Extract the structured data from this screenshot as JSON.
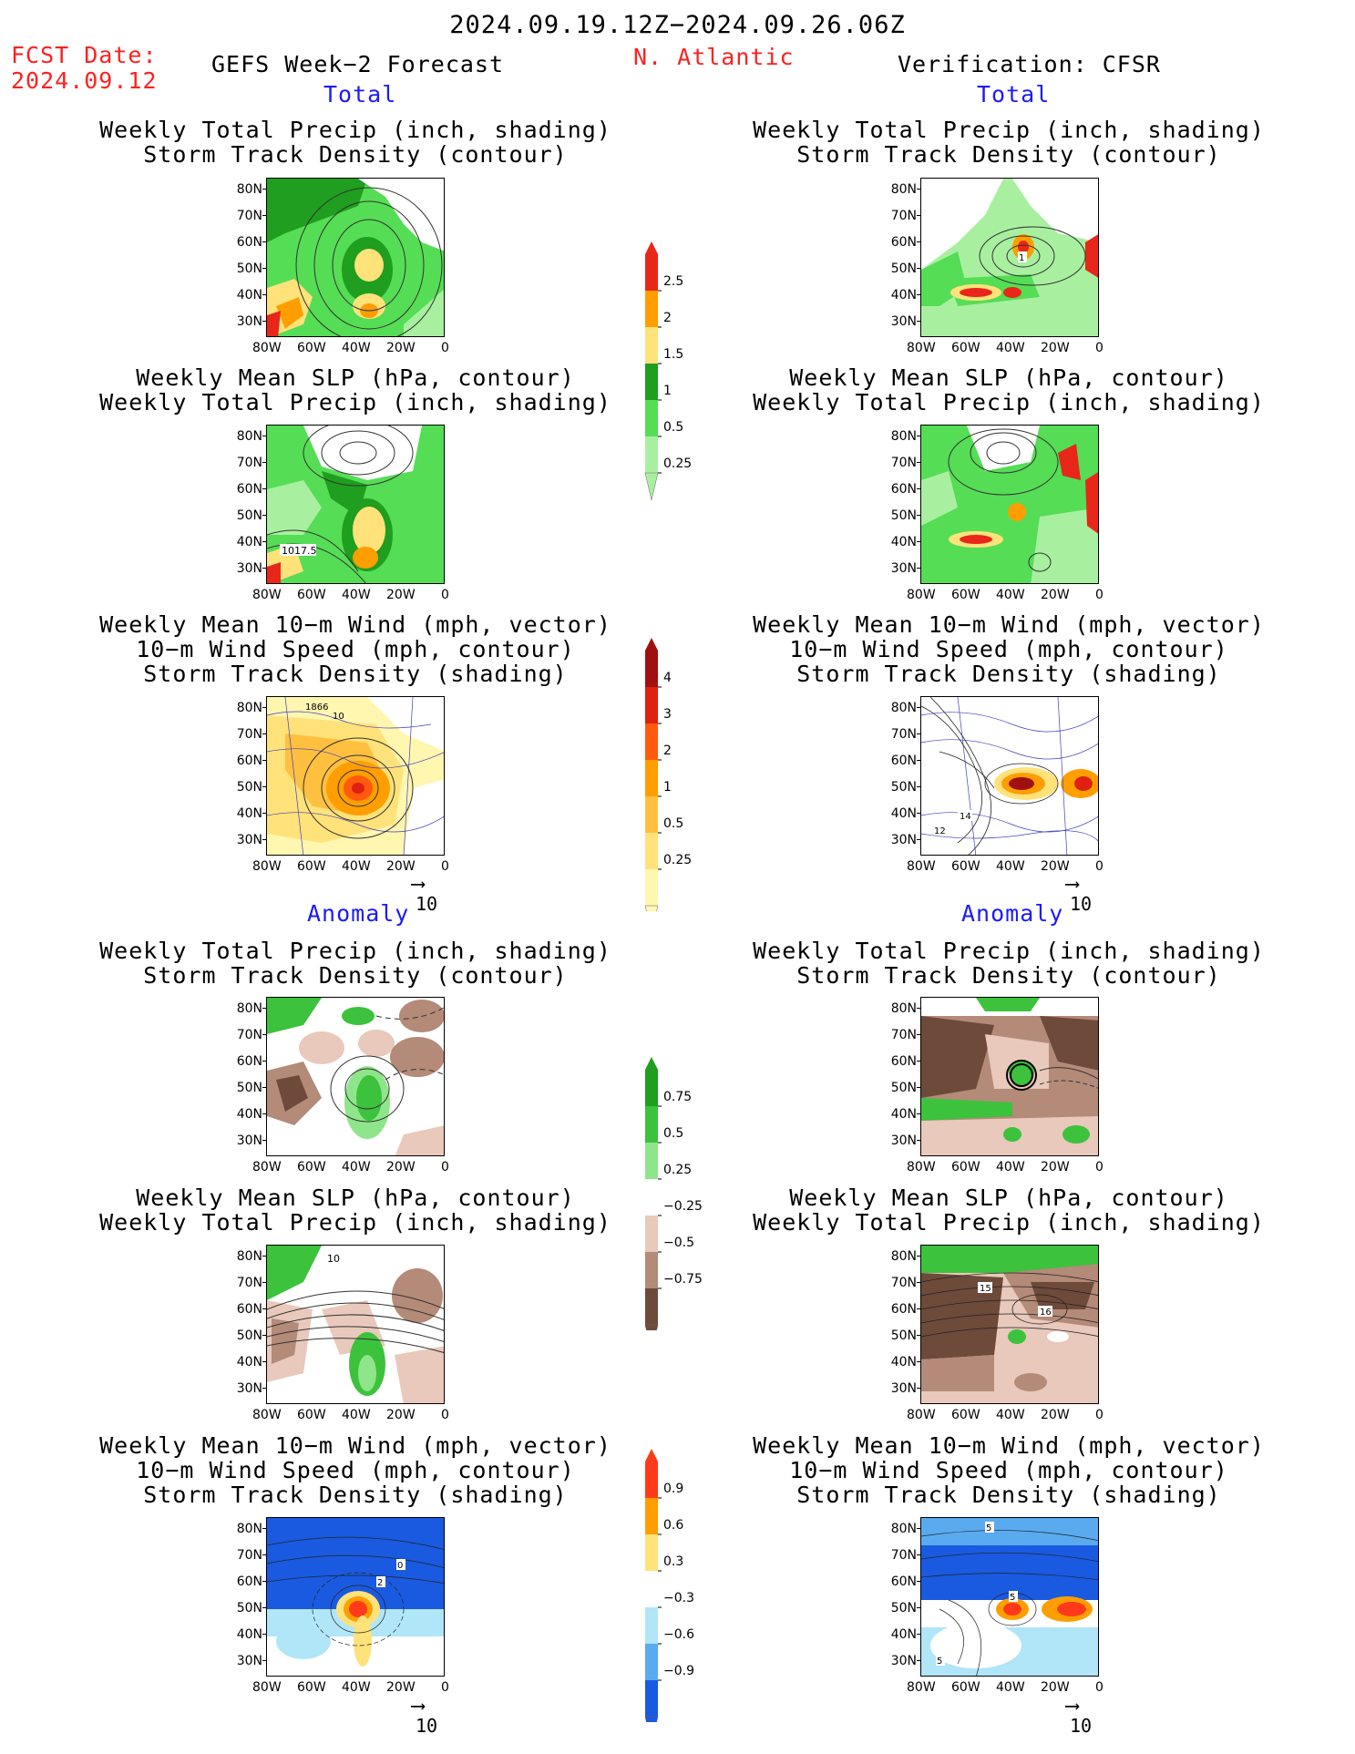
{
  "header": {
    "period": "2024.09.19.12Z−2024.09.26.06Z",
    "fcst_label": "FCST Date:",
    "fcst_date": "2024.09.12",
    "model": "GEFS Week−2 Forecast",
    "region": "N. Atlantic",
    "verification": "Verification: CFSR"
  },
  "sections": {
    "total": "Total",
    "anomaly": "Anomaly"
  },
  "titles": {
    "precip_track": [
      "Weekly Total Precip (inch, shading)",
      "Storm Track Density (contour)"
    ],
    "slp_precip": [
      "Weekly Mean SLP (hPa, contour)",
      "Weekly Total Precip (inch, shading)"
    ],
    "wind_track": [
      "Weekly Mean 10−m Wind (mph, vector)",
      "10−m Wind Speed (mph, contour)",
      "Storm Track Density (shading)"
    ]
  },
  "axes": {
    "lat_ticks": [
      "80N",
      "70N",
      "60N",
      "50N",
      "40N",
      "30N"
    ],
    "lon_ticks": [
      "80W",
      "60W",
      "40W",
      "20W",
      "0"
    ]
  },
  "vector_ref": "10",
  "colorbars": {
    "total_precip": {
      "labels": [
        "2.5",
        "2",
        "1.5",
        "1",
        "0.5",
        "0.25"
      ],
      "colors": [
        "#e8261a",
        "#ff9e00",
        "#ffe27a",
        "#1f9e1f",
        "#55dd55",
        "#a8f0a0"
      ]
    },
    "total_track": {
      "labels": [
        "4",
        "3",
        "2",
        "1",
        "0.5",
        "0.25"
      ],
      "colors": [
        "#a01010",
        "#e02010",
        "#ff5a10",
        "#ff9e00",
        "#ffc040",
        "#ffe27a",
        "#fff6b0"
      ]
    },
    "anom_precip": {
      "labels": [
        "0.75",
        "0.5",
        "0.25",
        "−0.25",
        "−0.5",
        "−0.75"
      ],
      "colors": [
        "#1f9e1f",
        "#3cc23c",
        "#8fe58a",
        "#ffffff",
        "#e8c9bb",
        "#b48a78",
        "#6e4a3a"
      ]
    },
    "anom_track": {
      "labels": [
        "0.9",
        "0.6",
        "0.3",
        "−0.3",
        "−0.6",
        "−0.9"
      ],
      "colors": [
        "#ff3a1a",
        "#ff9e00",
        "#ffe27a",
        "#ffffff",
        "#b0e6f8",
        "#5aaaf0",
        "#1a5ae0"
      ]
    }
  },
  "contour_labels": {
    "fc_slp_total": "1017.5",
    "fc_wind_total": [
      "1866",
      "10"
    ],
    "obs_precip_total": "1",
    "obs_wind_total": [
      "14",
      "12"
    ],
    "fc_slp_anom": "10",
    "obs_slp_anom": [
      "15",
      "16"
    ],
    "fc_wind_anom": [
      "0",
      "2"
    ],
    "obs_wind_anom": [
      "5",
      "5",
      "5"
    ]
  }
}
